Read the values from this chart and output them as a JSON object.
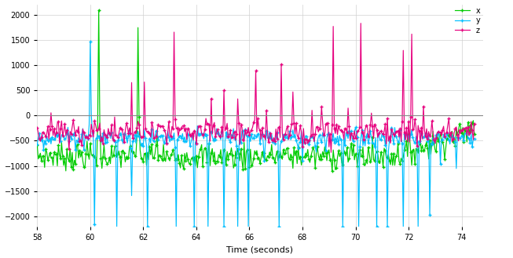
{
  "xlabel": "Time (seconds)",
  "xlim": [
    58,
    74.8
  ],
  "ylim": [
    -2200,
    2200
  ],
  "yticks": [
    -2000,
    -1500,
    -1000,
    -500,
    0,
    500,
    1000,
    1500,
    2000
  ],
  "xticks": [
    58,
    60,
    62,
    64,
    66,
    68,
    70,
    72,
    74
  ],
  "color_x": "#00cc00",
  "color_y": "#00bfff",
  "color_z": "#e6007e",
  "legend_labels": [
    "x",
    "y",
    "z"
  ],
  "bg_color": "#ffffff",
  "grid_color": "#d0d0d0",
  "linewidth": 0.85,
  "marker": "+",
  "markersize": 3.5
}
